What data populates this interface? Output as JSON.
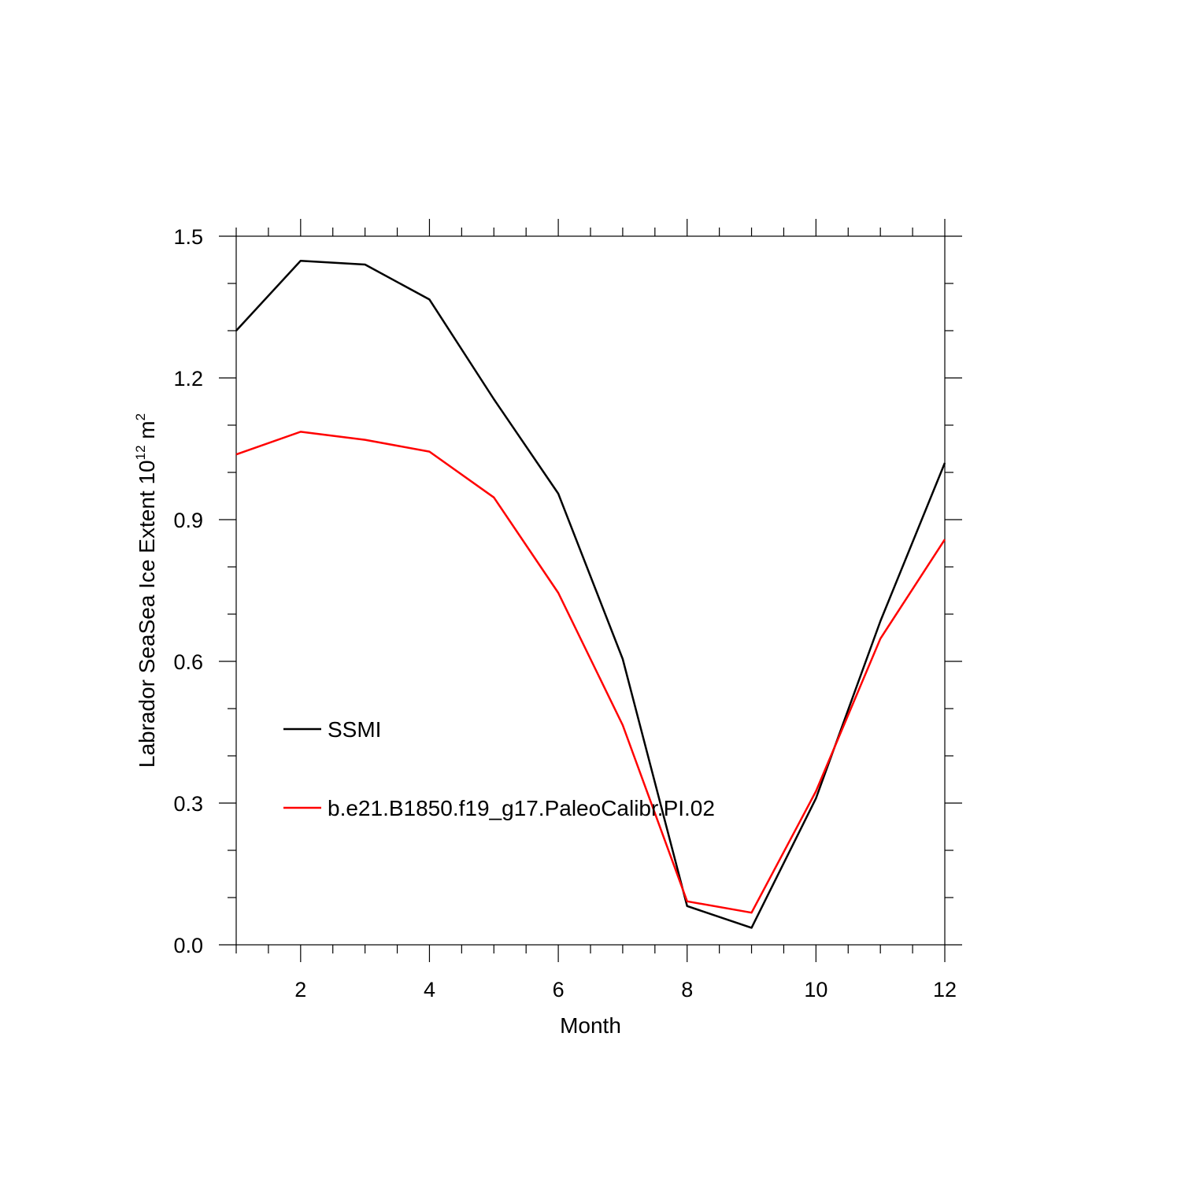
{
  "chart_data": {
    "type": "line",
    "title": "",
    "xlabel": "Month",
    "ylabel": {
      "text": "Labrador SeaSea Ice Extent 10",
      "superscript": "12",
      "unit": " m",
      "unit_superscript": "2"
    },
    "xlim": [
      1,
      12
    ],
    "ylim": [
      0.0,
      1.5
    ],
    "x_ticks": [
      2,
      4,
      6,
      8,
      10,
      12
    ],
    "x_tick_labels": [
      "2",
      "4",
      "6",
      "8",
      "10",
      "12"
    ],
    "y_ticks": [
      0.0,
      0.3,
      0.6,
      0.9,
      1.2,
      1.5
    ],
    "y_tick_labels": [
      "0.0",
      "0.3",
      "0.6",
      "0.9",
      "1.2",
      "1.5"
    ],
    "x_minor_step": 0.5,
    "y_minor_step": 0.1,
    "grid": false,
    "legend_position": "bottom-left",
    "x": [
      1,
      2,
      3,
      4,
      5,
      6,
      7,
      8,
      9,
      10,
      11,
      12
    ],
    "series": [
      {
        "name": "SSMI",
        "color": "#000000",
        "values": [
          1.3,
          1.448,
          1.44,
          1.366,
          1.155,
          0.955,
          0.605,
          0.082,
          0.036,
          0.31,
          0.685,
          1.02
        ]
      },
      {
        "name": "b.e21.B1850.f19_g17.PaleoCalibr.PI.02",
        "color": "#ff0000",
        "values": [
          1.038,
          1.086,
          1.069,
          1.044,
          0.947,
          0.745,
          0.465,
          0.092,
          0.068,
          0.325,
          0.648,
          0.858
        ]
      }
    ]
  }
}
